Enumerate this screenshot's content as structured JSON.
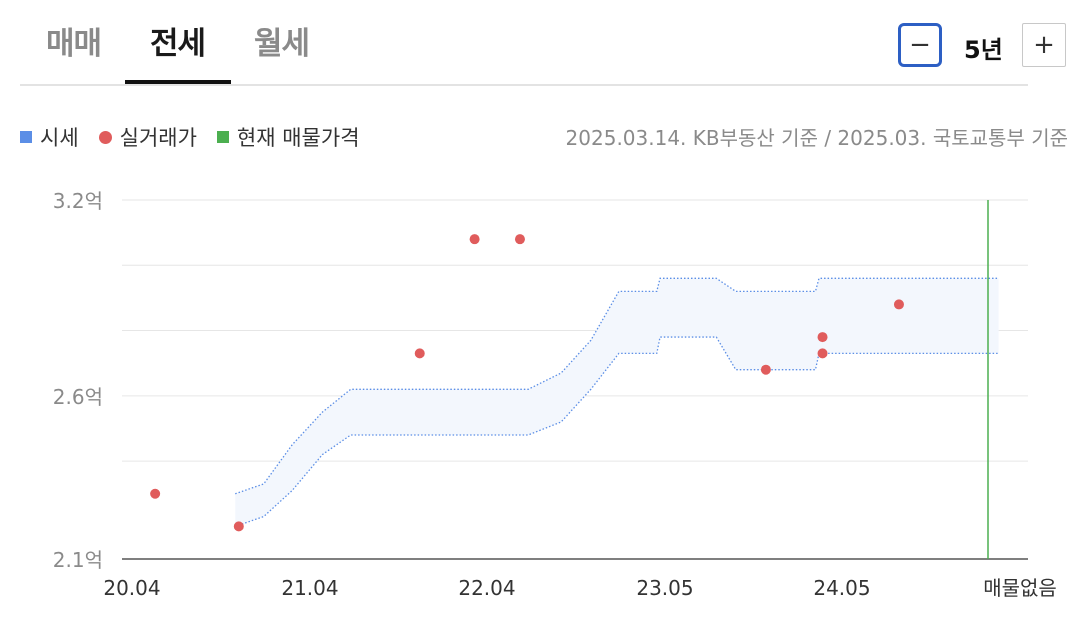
{
  "tabs": [
    {
      "label": "매매",
      "active": false
    },
    {
      "label": "전세",
      "active": true
    },
    {
      "label": "월세",
      "active": false
    }
  ],
  "zoom": {
    "minus": "−",
    "plus": "+",
    "period": "5년"
  },
  "legend": {
    "items": [
      {
        "label": "시세",
        "color": "#5b8ee6",
        "shape": "square"
      },
      {
        "label": "실거래가",
        "color": "#e05c5c",
        "shape": "circle"
      },
      {
        "label": "현재 매물가격",
        "color": "#4caf50",
        "shape": "square"
      }
    ]
  },
  "source": "2025.03.14. KB부동산 기준 / 2025.03. 국토교통부 기준",
  "chart_data": {
    "type": "scatter",
    "y_tick_labels": [
      "3.2억",
      "2.6억",
      "2.1억"
    ],
    "x_tick_labels": [
      "20.04",
      "21.04",
      "22.04",
      "23.05",
      "24.05",
      "매물없음"
    ],
    "y_unit": "억",
    "ylim": [
      2.1,
      3.2
    ],
    "grid": true,
    "series": [
      {
        "type": "band",
        "color": "#5b8ee6",
        "points": [
          {
            "x": 2020.83,
            "low": 2.2,
            "high": 2.3
          },
          {
            "x": 2020.99,
            "low": 2.23,
            "high": 2.33
          },
          {
            "x": 2021.15,
            "low": 2.31,
            "high": 2.45
          },
          {
            "x": 2021.32,
            "low": 2.42,
            "high": 2.55
          },
          {
            "x": 2021.48,
            "low": 2.48,
            "high": 2.62
          },
          {
            "x": 2021.82,
            "low": 2.48,
            "high": 2.62
          },
          {
            "x": 2022.0,
            "low": 2.48,
            "high": 2.62
          },
          {
            "x": 2022.5,
            "low": 2.48,
            "high": 2.62
          },
          {
            "x": 2022.7,
            "low": 2.52,
            "high": 2.67
          },
          {
            "x": 2022.88,
            "low": 2.62,
            "high": 2.77
          },
          {
            "x": 2023.05,
            "low": 2.73,
            "high": 2.92
          },
          {
            "x": 2023.28,
            "low": 2.73,
            "high": 2.92
          },
          {
            "x": 2023.3,
            "low": 2.78,
            "high": 2.96
          },
          {
            "x": 2023.62,
            "low": 2.78,
            "high": 2.96
          },
          {
            "x": 2023.73,
            "low": 2.68,
            "high": 2.92
          },
          {
            "x": 2024.18,
            "low": 2.68,
            "high": 2.92
          },
          {
            "x": 2024.2,
            "low": 2.73,
            "high": 2.96
          },
          {
            "x": 2025.21,
            "low": 2.73,
            "high": 2.96
          }
        ]
      },
      {
        "type": "points",
        "color": "#e05c5c",
        "points": [
          {
            "x": 2020.38,
            "y": 2.3
          },
          {
            "x": 2020.85,
            "y": 2.2
          },
          {
            "x": 2021.87,
            "y": 2.73
          },
          {
            "x": 2022.18,
            "y": 3.08
          },
          {
            "x": 2022.45,
            "y": 3.08
          },
          {
            "x": 2023.9,
            "y": 2.68
          },
          {
            "x": 2024.22,
            "y": 2.73
          },
          {
            "x": 2024.22,
            "y": 2.78
          },
          {
            "x": 2024.65,
            "y": 2.88
          }
        ]
      },
      {
        "type": "vline",
        "color": "#4caf50",
        "label": "매물없음"
      }
    ]
  }
}
